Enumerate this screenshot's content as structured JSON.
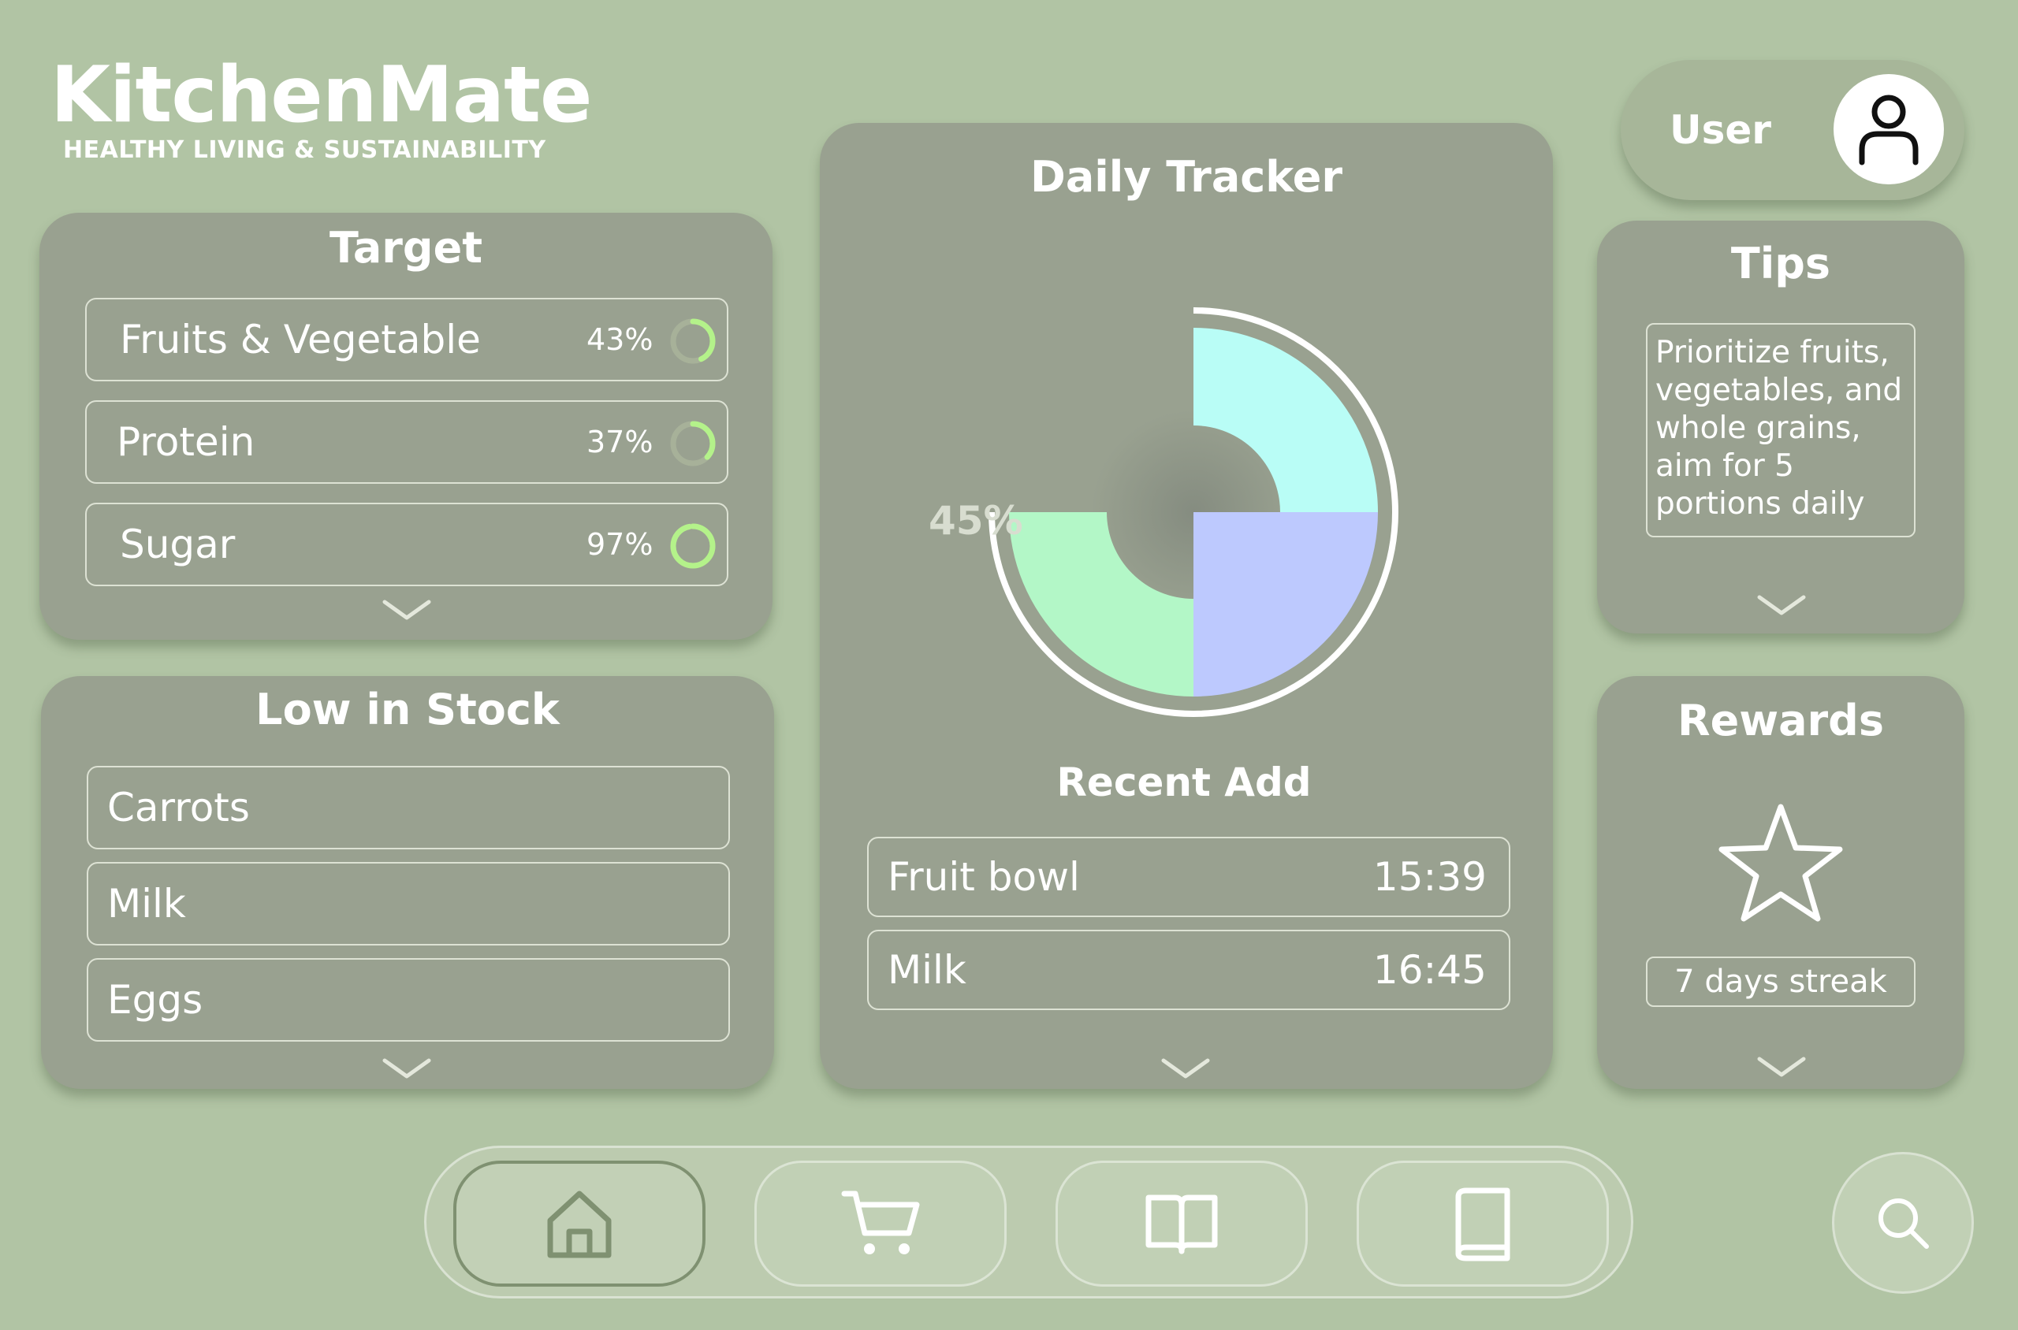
{
  "brand": {
    "title": "KitchenMate",
    "subtitle": "HEALTHY LIVING & SUSTAINABILITY"
  },
  "user": {
    "label": "User",
    "icon": "user-icon"
  },
  "target": {
    "title": "Target",
    "items": [
      {
        "label": "Fruits & Vegetable",
        "percent_label": "43%",
        "progress": 0.43
      },
      {
        "label": "Protein",
        "percent_label": "37%",
        "progress": 0.37
      },
      {
        "label": "Sugar",
        "percent_label": "97%",
        "progress": 0.97
      }
    ],
    "expand_icon": "chevron-down-icon"
  },
  "low_stock": {
    "title": "Low in Stock",
    "items": [
      {
        "label": "Carrots"
      },
      {
        "label": "Milk"
      },
      {
        "label": "Eggs"
      }
    ],
    "expand_icon": "chevron-down-icon"
  },
  "daily_tracker": {
    "title": "Daily Tracker",
    "chart_label": "45%",
    "recent_title": "Recent Add",
    "recent": [
      {
        "label": "Fruit bowl",
        "time": "15:39"
      },
      {
        "label": "Milk",
        "time": "16:45"
      }
    ],
    "expand_icon": "chevron-down-icon"
  },
  "tips": {
    "title": "Tips",
    "text": "Prioritize fruits, vegetables, and whole grains, aim for 5 portions daily",
    "expand_icon": "chevron-down-icon"
  },
  "rewards": {
    "title": "Rewards",
    "icon": "star-icon",
    "streak": "7 days streak",
    "expand_icon": "chevron-down-icon"
  },
  "nav": {
    "items": [
      {
        "name": "home",
        "icon": "home-icon",
        "active": true
      },
      {
        "name": "cart",
        "icon": "cart-icon",
        "active": false
      },
      {
        "name": "recipes",
        "icon": "open-book-icon",
        "active": false
      },
      {
        "name": "journal",
        "icon": "book-icon",
        "active": false
      }
    ],
    "search_icon": "search-icon"
  },
  "colors": {
    "background": "#b1c4a4",
    "card": "#99a190",
    "ring_progress": "#b4f28a",
    "segment_cyan": "#b9fdf6",
    "segment_periwinkle": "#bdc9fe",
    "segment_mint": "#b3f7c7"
  },
  "chart_data": {
    "type": "pie",
    "segments": [
      {
        "color": "#b9fdf6",
        "start_deg": 0,
        "end_deg": 90
      },
      {
        "color": "#bdc9fe",
        "start_deg": 90,
        "end_deg": 180
      },
      {
        "color": "#b3f7c7",
        "start_deg": 180,
        "end_deg": 270
      }
    ],
    "labels": [
      "45%"
    ]
  }
}
